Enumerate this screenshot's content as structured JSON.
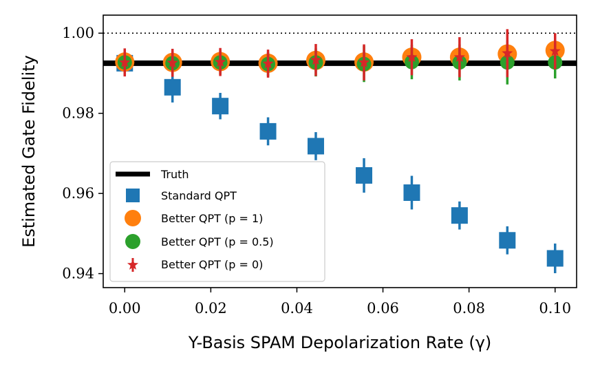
{
  "chart_data": {
    "type": "scatter",
    "title": "",
    "xlabel": "Y-Basis SPAM Depolarization Rate (γ)",
    "ylabel": "Estimated Gate Fidelity",
    "xlim": [
      -0.005,
      0.105
    ],
    "ylim": [
      0.9365,
      1.0045
    ],
    "xticks": [
      0.0,
      0.02,
      0.04,
      0.06,
      0.08,
      0.1
    ],
    "xtick_labels": [
      "0.00",
      "0.02",
      "0.04",
      "0.06",
      "0.08",
      "0.10"
    ],
    "yticks": [
      0.94,
      0.96,
      0.98,
      1.0
    ],
    "ytick_labels": [
      "0.94",
      "0.96",
      "0.98",
      "1.00"
    ],
    "reference_line": {
      "y": 1.0,
      "style": "dotted"
    },
    "legend_position": "lower-left",
    "legend_entries": [
      "Truth",
      "Standard QPT",
      "Better QPT (p = 1)",
      "Better QPT (p = 0.5)",
      "Better QPT (p = 0)"
    ],
    "truth": {
      "name": "Truth",
      "y": 0.9925,
      "color": "#000000"
    },
    "x": [
      0.0,
      0.0111,
      0.0222,
      0.0333,
      0.0444,
      0.0556,
      0.0667,
      0.0778,
      0.0889,
      0.1
    ],
    "series": [
      {
        "name": "Standard QPT",
        "marker": "square",
        "color": "#1f77b4",
        "values": [
          0.9925,
          0.9865,
          0.9818,
          0.9755,
          0.9718,
          0.9645,
          0.9602,
          0.9545,
          0.9483,
          0.9438
        ],
        "errors": [
          0.003,
          0.0038,
          0.0033,
          0.0035,
          0.0035,
          0.0043,
          0.0042,
          0.0035,
          0.0035,
          0.0037
        ]
      },
      {
        "name": "Better QPT (p = 1)",
        "marker": "circle",
        "color": "#ff7f0e",
        "values": [
          0.9928,
          0.9927,
          0.9929,
          0.9925,
          0.9932,
          0.9928,
          0.994,
          0.994,
          0.9948,
          0.9957
        ],
        "errors": [
          0,
          0,
          0,
          0,
          0,
          0,
          0,
          0,
          0,
          0
        ]
      },
      {
        "name": "Better QPT (p = 0.5)",
        "marker": "circle",
        "color": "#2ca02c",
        "values": [
          0.9927,
          0.9925,
          0.9927,
          0.9923,
          0.9927,
          0.9923,
          0.9928,
          0.9927,
          0.9927,
          0.9927
        ],
        "errors": [
          0.003,
          0.003,
          0.003,
          0.003,
          0.0035,
          0.0045,
          0.0043,
          0.0045,
          0.0055,
          0.004
        ]
      },
      {
        "name": "Better QPT (p = 0)",
        "marker": "star",
        "color": "#d62728",
        "values": [
          0.9927,
          0.9926,
          0.9928,
          0.9924,
          0.9933,
          0.9927,
          0.994,
          0.994,
          0.995,
          0.9955
        ],
        "errors": [
          0.0035,
          0.0035,
          0.0035,
          0.0035,
          0.004,
          0.0045,
          0.0045,
          0.005,
          0.006,
          0.0045
        ]
      }
    ]
  }
}
